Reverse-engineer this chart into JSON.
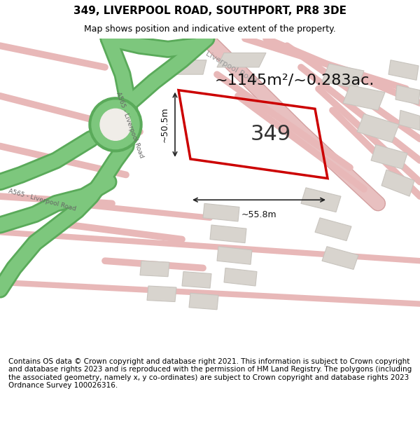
{
  "title": "349, LIVERPOOL ROAD, SOUTHPORT, PR8 3DE",
  "subtitle": "Map shows position and indicative extent of the property.",
  "area_text": "~1145m²/~0.283ac.",
  "label_349": "349",
  "dim_width": "~55.8m",
  "dim_height": "~50.5m",
  "footer": "Contains OS data © Crown copyright and database right 2021. This information is subject to Crown copyright and database rights 2023 and is reproduced with the permission of HM Land Registry. The polygons (including the associated geometry, namely x, y co-ordinates) are subject to Crown copyright and database rights 2023 Ordnance Survey 100026316.",
  "bg_color": "#f0ede8",
  "map_bg": "#f0ede8",
  "footer_bg": "#ffffff",
  "road_color_light": "#f5c5c5",
  "road_color_green": "#7dc77d",
  "road_border_green": "#5aaa5a",
  "property_outline_color": "#cc0000",
  "property_fill_color": "#f0ede8",
  "building_fill": "#d8d4ce",
  "building_stroke": "#c8c4be",
  "road_label_color": "#888888",
  "dim_line_color": "#222222",
  "title_fontsize": 11,
  "subtitle_fontsize": 9,
  "area_fontsize": 16,
  "label_349_fontsize": 22,
  "dim_fontsize": 9,
  "footer_fontsize": 7.5
}
